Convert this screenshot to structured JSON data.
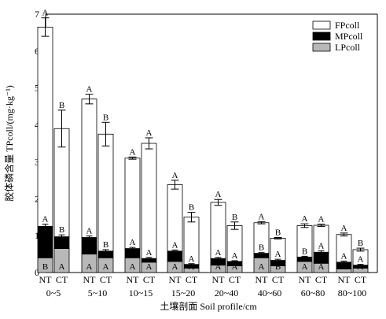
{
  "chart_data": {
    "type": "bar",
    "stacked": true,
    "xlabel": "土壤剖面 Soil profile/cm",
    "ylabel": "胶体磷含量 TPcoll/(mg·kg⁻¹)",
    "ylim": [
      0,
      7
    ],
    "yticks": [
      0,
      1,
      2,
      3,
      4,
      5,
      6,
      7
    ],
    "treatments": [
      "NT",
      "CT"
    ],
    "categories": [
      "0~5",
      "5~10",
      "10~15",
      "15~20",
      "20~40",
      "40~60",
      "60~80",
      "80~100"
    ],
    "legend": {
      "position": "top-right",
      "entries": [
        "FPcoll",
        "MPcoll",
        "LPcoll"
      ]
    },
    "colors": {
      "FPcoll": "#ffffff",
      "MPcoll": "#000000",
      "LPcoll": "#b8b8b8"
    },
    "series": [
      {
        "name": "LPcoll",
        "NT": [
          0.4,
          0.5,
          0.4,
          0.3,
          0.2,
          0.4,
          0.3,
          0.1
        ],
        "CT": [
          0.65,
          0.4,
          0.28,
          0.12,
          0.18,
          0.18,
          0.25,
          0.12
        ]
      },
      {
        "name": "MPcoll",
        "NT": [
          0.85,
          0.45,
          0.25,
          0.28,
          0.18,
          0.12,
          0.12,
          0.18
        ],
        "CT": [
          0.32,
          0.18,
          0.1,
          0.1,
          0.12,
          0.15,
          0.3,
          0.08
        ]
      },
      {
        "name": "FPcoll",
        "NT": [
          5.4,
          3.75,
          2.45,
          1.8,
          1.52,
          0.83,
          0.85,
          0.75
        ],
        "CT": [
          2.93,
          3.17,
          3.12,
          1.28,
          0.97,
          0.6,
          0.73,
          0.42
        ]
      }
    ],
    "totals": {
      "NT": [
        6.65,
        4.7,
        3.1,
        2.38,
        1.9,
        1.35,
        1.27,
        1.03
      ],
      "CT": [
        3.9,
        3.75,
        3.5,
        1.5,
        1.27,
        0.93,
        1.28,
        0.62
      ]
    },
    "total_error": {
      "NT": [
        0.25,
        0.13,
        0.03,
        0.12,
        0.08,
        0.03,
        0.05,
        0.04
      ],
      "CT": [
        0.5,
        0.32,
        0.15,
        0.13,
        0.1,
        0.02,
        0.03,
        0.04
      ]
    },
    "mp_top_error": {
      "NT": [
        0.06,
        0.04,
        0.03,
        0.03,
        0.03,
        0.02,
        0.02,
        0.03
      ],
      "CT": [
        0.05,
        0.04,
        0.03,
        0.02,
        0.02,
        0.03,
        0.04,
        0.02
      ]
    },
    "letters": {
      "total": {
        "NT": [
          "A",
          "A",
          "A",
          "A",
          "A",
          "A",
          "A",
          "A"
        ],
        "CT": [
          "B",
          "B",
          "A",
          "B",
          "B",
          "B",
          "A",
          "B"
        ]
      },
      "mp": {
        "NT": [
          "A",
          "A",
          "A",
          "A",
          "A",
          "B",
          "B",
          "A"
        ],
        "CT": [
          "B",
          "B",
          "A",
          "A",
          "A",
          "A",
          "A",
          "A"
        ]
      },
      "lp": {
        "NT": [
          "B",
          "A",
          "A",
          "A",
          "A",
          "A",
          "A",
          "A"
        ],
        "CT": [
          "A",
          "A",
          "A",
          "A",
          "A",
          "B",
          "A",
          "A"
        ]
      }
    }
  }
}
